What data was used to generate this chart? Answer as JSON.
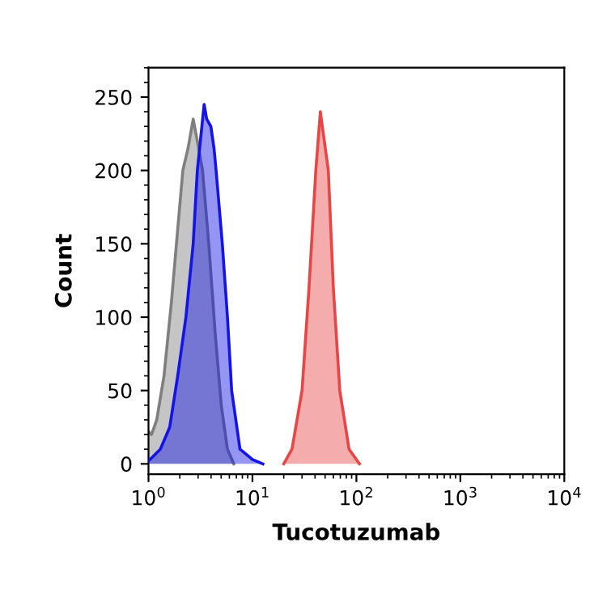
{
  "chart_data": {
    "type": "area",
    "xlabel": "Tucotuzumab",
    "ylabel": "Count",
    "log": "x",
    "xlim": [
      1,
      10000
    ],
    "ylim": [
      -7,
      270
    ],
    "xticks": [
      {
        "value": 1,
        "label": "10$^{0}$"
      },
      {
        "value": 10,
        "label": "10$^{1}$"
      },
      {
        "value": 100,
        "label": "10$^{2}$"
      },
      {
        "value": 1000,
        "label": "10$^{3}$"
      },
      {
        "value": 10000,
        "label": "10$^{4}$"
      }
    ],
    "yticks": [
      0,
      50,
      100,
      150,
      200,
      250
    ],
    "grid": false,
    "legend": false,
    "series": [
      {
        "color": "#7f7f7f",
        "x": [
          1,
          1.07,
          1.2,
          1.41,
          1.66,
          1.91,
          2.14,
          2.4,
          2.69,
          2.95,
          3.31,
          3.8,
          4.37,
          5.01,
          5.75,
          6.61
        ],
        "values": [
          22,
          20,
          30,
          60,
          110,
          160,
          200,
          215,
          235,
          220,
          200,
          150,
          90,
          40,
          10,
          0
        ]
      },
      {
        "color": "#1414e6",
        "x": [
          1,
          1.3,
          1.6,
          1.91,
          2.29,
          2.69,
          2.95,
          3.43,
          3.63,
          3.98,
          4.27,
          4.47,
          5.13,
          5.75,
          6.31,
          7.59,
          10,
          12.6
        ],
        "values": [
          2,
          10,
          25,
          60,
          100,
          150,
          200,
          245,
          235,
          230,
          215,
          200,
          150,
          100,
          50,
          10,
          3,
          0
        ]
      },
      {
        "color": "#e84646",
        "x": [
          20,
          24,
          30,
          35,
          40.7,
          45,
          53.7,
          60,
          69.2,
          85,
          107
        ],
        "values": [
          0,
          10,
          50,
          120,
          200,
          240,
          200,
          120,
          50,
          10,
          0
        ]
      }
    ]
  }
}
